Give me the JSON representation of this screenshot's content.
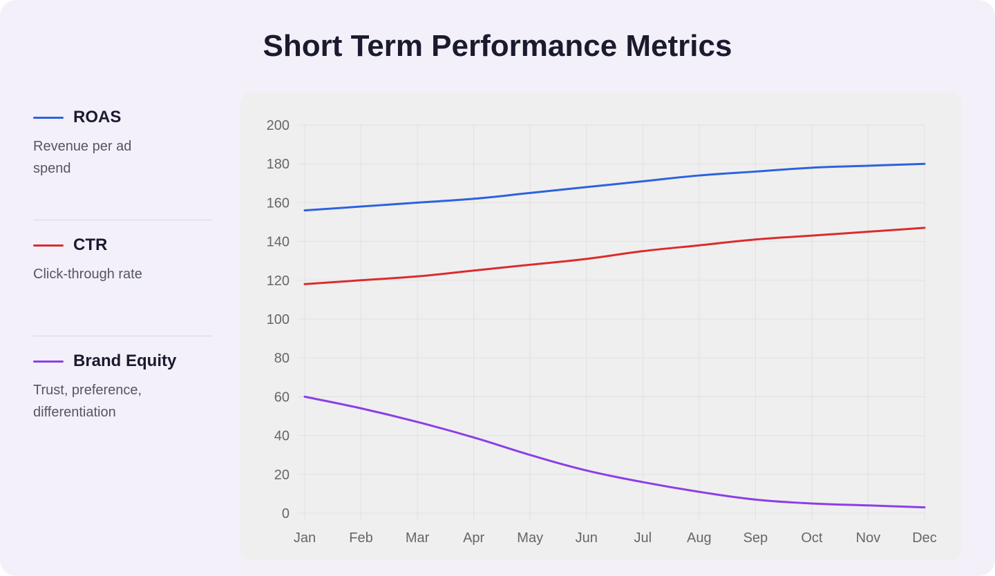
{
  "title": "Short Term Performance Metrics",
  "legend": [
    {
      "name": "ROAS",
      "description": "Revenue per ad spend",
      "color": "#2b62df"
    },
    {
      "name": "CTR",
      "description": "Click-through rate",
      "color": "#dc2b2b"
    },
    {
      "name": "Brand Equity",
      "description": "Trust, preference, differentiation",
      "color": "#8b3ee8"
    }
  ],
  "chart_data": {
    "type": "line",
    "title": "Short Term Performance Metrics",
    "xlabel": "",
    "ylabel": "",
    "categories": [
      "Jan",
      "Feb",
      "Mar",
      "Apr",
      "May",
      "Jun",
      "Jul",
      "Aug",
      "Sep",
      "Oct",
      "Nov",
      "Dec"
    ],
    "ylim": [
      0,
      200
    ],
    "yticks": [
      0,
      20,
      40,
      60,
      80,
      100,
      120,
      140,
      160,
      180,
      200
    ],
    "grid": true,
    "legend_position": "left",
    "series": [
      {
        "name": "ROAS",
        "color": "#2b62df",
        "values": [
          156,
          158,
          160,
          162,
          165,
          168,
          171,
          174,
          176,
          178,
          179,
          180
        ]
      },
      {
        "name": "CTR",
        "color": "#dc2b2b",
        "values": [
          118,
          120,
          122,
          125,
          128,
          131,
          135,
          138,
          141,
          143,
          145,
          147
        ]
      },
      {
        "name": "Brand Equity",
        "color": "#8b3ee8",
        "values": [
          60,
          54,
          47,
          39,
          30,
          22,
          16,
          11,
          7,
          5,
          4,
          3
        ]
      }
    ]
  }
}
